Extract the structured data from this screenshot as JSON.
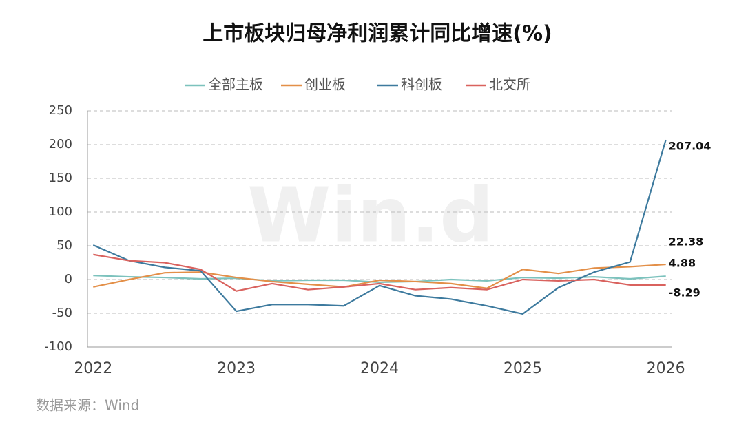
{
  "chart_data": {
    "type": "line",
    "title": "上市板块归母净利润累计同比增速(%)",
    "source": "数据来源：Wind",
    "watermark": "Win.d",
    "x": [
      2022,
      2022.25,
      2022.5,
      2022.75,
      2023,
      2023.25,
      2023.5,
      2023.75,
      2024,
      2024.25,
      2024.5,
      2024.75,
      2025,
      2025.25,
      2025.5,
      2025.75,
      2026
    ],
    "xlim": [
      2021.96,
      2026.04
    ],
    "xticks": [
      2022,
      2023,
      2024,
      2025,
      2026
    ],
    "ylim": [
      -100,
      250
    ],
    "yticks": [
      -100,
      -50,
      0,
      50,
      100,
      150,
      200,
      250
    ],
    "grid": true,
    "legend": "top",
    "series": [
      {
        "name": "全部主板",
        "color": "#7cc2bd",
        "values": [
          6,
          4,
          3,
          1,
          2,
          -2,
          -1,
          -1,
          -4,
          -3,
          0,
          -2,
          3,
          2,
          4,
          1,
          4.88
        ]
      },
      {
        "name": "创业板",
        "color": "#e38f48",
        "values": [
          -11,
          0,
          10,
          11,
          3,
          -3,
          -7,
          -11,
          -1,
          -3,
          -6,
          -13,
          15,
          9,
          17,
          19,
          22.38
        ]
      },
      {
        "name": "科创板",
        "color": "#3d7a9e",
        "values": [
          51,
          28,
          18,
          13,
          -47,
          -37,
          -37,
          -39,
          -9,
          -24,
          -29,
          -39,
          -51,
          -12,
          11,
          26,
          207.04
        ]
      },
      {
        "name": "北交所",
        "color": "#d9625e",
        "values": [
          37,
          28,
          25,
          15,
          -17,
          -6,
          -15,
          -11,
          -6,
          -15,
          -12,
          -15,
          0,
          -2,
          0,
          -8,
          -8.29
        ]
      }
    ]
  }
}
